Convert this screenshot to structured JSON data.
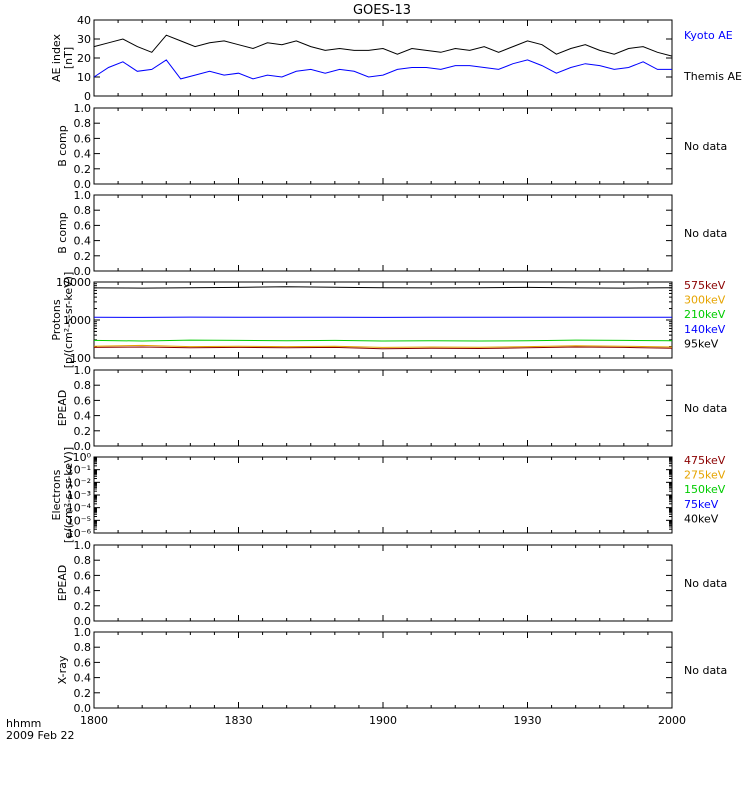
{
  "title": "GOES-13",
  "footer": {
    "unit_label": "hhmm",
    "date_label": "2009 Feb 22"
  },
  "x_axis": {
    "range": [
      0,
      120
    ],
    "ticks": [
      0,
      30,
      60,
      90,
      120
    ],
    "tick_labels": [
      "1800",
      "1830",
      "1900",
      "1930",
      "2000"
    ]
  },
  "no_data_text": "No data",
  "panels": [
    {
      "id": "ae",
      "ylabel": [
        "AE index",
        "[nT]"
      ],
      "scale": "linear",
      "ylim": [
        0,
        40
      ],
      "ticks": [
        0,
        10,
        20,
        30,
        40
      ],
      "tick_labels": [
        "0",
        "10",
        "20",
        "30",
        "40"
      ],
      "has_data": true,
      "legend": [
        {
          "label": "Kyoto AE",
          "color": "#0000ff"
        },
        {
          "label": "Themis AE",
          "color": "#000000"
        }
      ]
    },
    {
      "id": "b1",
      "ylabel": [
        "B comp"
      ],
      "scale": "linear",
      "ylim": [
        0,
        1
      ],
      "ticks": [
        0,
        0.2,
        0.4,
        0.6,
        0.8,
        1.0
      ],
      "tick_labels": [
        "0.0",
        "0.2",
        "0.4",
        "0.6",
        "0.8",
        "1.0"
      ],
      "has_data": false,
      "legend": []
    },
    {
      "id": "b2",
      "ylabel": [
        "B comp"
      ],
      "scale": "linear",
      "ylim": [
        0,
        1
      ],
      "ticks": [
        0,
        0.2,
        0.4,
        0.6,
        0.8,
        1.0
      ],
      "tick_labels": [
        "0.0",
        "0.2",
        "0.4",
        "0.6",
        "0.8",
        "1.0"
      ],
      "has_data": false,
      "legend": []
    },
    {
      "id": "protons",
      "ylabel": [
        "Protons",
        "[p/(cm²-s-sr-keV)]"
      ],
      "scale": "log",
      "ylim": [
        100,
        10000
      ],
      "ticks": [
        100,
        1000,
        10000
      ],
      "tick_labels": [
        "100",
        "1000",
        "10000"
      ],
      "has_data": true,
      "legend": [
        {
          "label": "575keV",
          "color": "#8b0000"
        },
        {
          "label": "300keV",
          "color": "#e6a400"
        },
        {
          "label": "210keV",
          "color": "#00cc00"
        },
        {
          "label": "140keV",
          "color": "#0000ff"
        },
        {
          "label": "95keV",
          "color": "#000000"
        }
      ]
    },
    {
      "id": "epead1",
      "ylabel": [
        "EPEAD"
      ],
      "scale": "linear",
      "ylim": [
        0,
        1
      ],
      "ticks": [
        0,
        0.2,
        0.4,
        0.6,
        0.8,
        1.0
      ],
      "tick_labels": [
        "0.0",
        "0.2",
        "0.4",
        "0.6",
        "0.8",
        "1.0"
      ],
      "has_data": false,
      "legend": []
    },
    {
      "id": "electrons",
      "ylabel": [
        "Electrons",
        "[e/(cm²-s-sr-keV)]"
      ],
      "scale": "log",
      "ylim": [
        1e-06,
        1
      ],
      "ticks": [
        1e-06,
        1e-05,
        0.0001,
        0.001,
        0.01,
        0.1,
        1
      ],
      "tick_labels": [
        "10⁻⁶",
        "10⁻⁵",
        "10⁻⁴",
        "10⁻³",
        "10⁻²",
        "10⁻¹",
        "10⁰"
      ],
      "has_data": false,
      "legend": [
        {
          "label": "475keV",
          "color": "#8b0000"
        },
        {
          "label": "275keV",
          "color": "#e6a400"
        },
        {
          "label": "150keV",
          "color": "#00cc00"
        },
        {
          "label": "75keV",
          "color": "#0000ff"
        },
        {
          "label": "40keV",
          "color": "#000000"
        }
      ]
    },
    {
      "id": "epead2",
      "ylabel": [
        "EPEAD"
      ],
      "scale": "linear",
      "ylim": [
        0,
        1
      ],
      "ticks": [
        0,
        0.2,
        0.4,
        0.6,
        0.8,
        1.0
      ],
      "tick_labels": [
        "0.0",
        "0.2",
        "0.4",
        "0.6",
        "0.8",
        "1.0"
      ],
      "has_data": false,
      "legend": []
    },
    {
      "id": "xray",
      "ylabel": [
        "X-ray"
      ],
      "scale": "linear",
      "ylim": [
        0,
        1
      ],
      "ticks": [
        0,
        0.2,
        0.4,
        0.6,
        0.8,
        1.0
      ],
      "tick_labels": [
        "0.0",
        "0.2",
        "0.4",
        "0.6",
        "0.8",
        "1.0"
      ],
      "has_data": false,
      "legend": []
    }
  ],
  "chart_data": [
    {
      "type": "line",
      "panel": "ae",
      "x": [
        0,
        3,
        6,
        9,
        12,
        15,
        18,
        21,
        24,
        27,
        30,
        33,
        36,
        39,
        42,
        45,
        48,
        51,
        54,
        57,
        60,
        63,
        66,
        69,
        72,
        75,
        78,
        81,
        84,
        87,
        90,
        93,
        96,
        99,
        102,
        105,
        108,
        111,
        114,
        117,
        120
      ],
      "series": [
        {
          "name": "Kyoto AE",
          "color": "#0000ff",
          "values": [
            10,
            15,
            18,
            13,
            14,
            19,
            9,
            11,
            13,
            11,
            12,
            9,
            11,
            10,
            13,
            14,
            12,
            14,
            13,
            10,
            11,
            14,
            15,
            15,
            14,
            16,
            16,
            15,
            14,
            17,
            19,
            16,
            12,
            15,
            17,
            16,
            14,
            15,
            18,
            14,
            14
          ]
        },
        {
          "name": "Themis AE",
          "color": "#000000",
          "values": [
            26,
            28,
            30,
            26,
            23,
            32,
            29,
            26,
            28,
            29,
            27,
            25,
            28,
            27,
            29,
            26,
            24,
            25,
            24,
            24,
            25,
            22,
            25,
            24,
            23,
            25,
            24,
            26,
            23,
            26,
            29,
            27,
            22,
            25,
            27,
            24,
            22,
            25,
            26,
            23,
            21
          ]
        }
      ],
      "xlabel": "",
      "ylabel": "AE index [nT]",
      "ylim": [
        0,
        40
      ]
    },
    {
      "type": "line",
      "panel": "protons",
      "log_y": true,
      "x": [
        0,
        10,
        20,
        30,
        40,
        50,
        60,
        70,
        80,
        90,
        100,
        110,
        120
      ],
      "series": [
        {
          "name": "575keV",
          "color": "#8b0000",
          "values": [
            190,
            195,
            185,
            190,
            185,
            190,
            175,
            180,
            178,
            185,
            195,
            190,
            180
          ]
        },
        {
          "name": "300keV",
          "color": "#e6a400",
          "values": [
            205,
            215,
            200,
            205,
            200,
            205,
            190,
            195,
            192,
            200,
            210,
            205,
            195
          ]
        },
        {
          "name": "210keV",
          "color": "#00cc00",
          "values": [
            290,
            280,
            295,
            290,
            285,
            290,
            280,
            285,
            280,
            285,
            295,
            290,
            285
          ]
        },
        {
          "name": "140keV",
          "color": "#0000ff",
          "values": [
            1180,
            1170,
            1190,
            1175,
            1185,
            1180,
            1170,
            1175,
            1180,
            1175,
            1185,
            1180,
            1175
          ]
        },
        {
          "name": "95keV",
          "color": "#000000",
          "values": [
            7000,
            6900,
            7100,
            7200,
            7500,
            7300,
            7100,
            7000,
            7100,
            7200,
            7000,
            6900,
            7100
          ]
        }
      ],
      "xlabel": "",
      "ylabel": "Protons [p/(cm²-s-sr-keV)]",
      "ylim": [
        100,
        10000
      ]
    }
  ]
}
